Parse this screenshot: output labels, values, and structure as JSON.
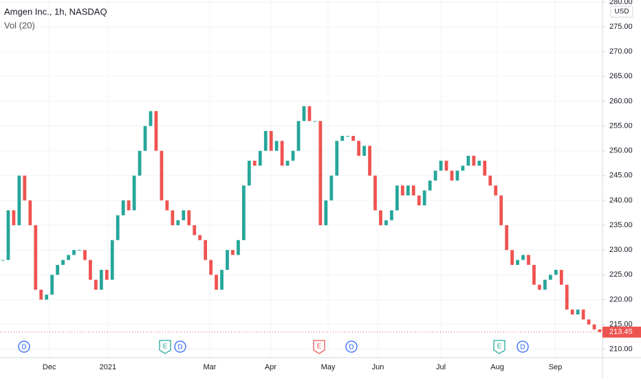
{
  "chart_data": {
    "type": "candlestick",
    "title": "Amgen Inc., 1h, NASDAQ",
    "subtitle": "Vol (20)",
    "currency": "USD",
    "up_color": "#26a69a",
    "down_color": "#ef5350",
    "grid": true,
    "xlim": [
      0,
      110
    ],
    "xticks": [
      {
        "value": 9,
        "label": "Dec"
      },
      {
        "value": 19.7,
        "label": "2021"
      },
      {
        "value": 38.3,
        "label": "Mar"
      },
      {
        "value": 49.4,
        "label": "Apr"
      },
      {
        "value": 59.9,
        "label": "May"
      },
      {
        "value": 69,
        "label": "Jun"
      },
      {
        "value": 80.5,
        "label": "Jul"
      },
      {
        "value": 90.8,
        "label": "Aug"
      },
      {
        "value": 101.4,
        "label": "Sep"
      }
    ],
    "ylim": [
      208.3,
      280.4
    ],
    "yticks": [
      {
        "value": 210,
        "label": "210.00"
      },
      {
        "value": 215,
        "label": "215.00"
      },
      {
        "value": 220,
        "label": "220.00"
      },
      {
        "value": 225,
        "label": "225.00"
      },
      {
        "value": 230,
        "label": "230.00"
      },
      {
        "value": 235,
        "label": "235.00"
      },
      {
        "value": 240,
        "label": "240.00"
      },
      {
        "value": 245,
        "label": "245.00"
      },
      {
        "value": 250,
        "label": "250.00"
      },
      {
        "value": 255,
        "label": "255.00"
      },
      {
        "value": 260,
        "label": "260.00"
      },
      {
        "value": 265,
        "label": "265.00"
      },
      {
        "value": 270,
        "label": "270.00"
      },
      {
        "value": 275,
        "label": "275.00"
      },
      {
        "value": 280,
        "label": "280.00"
      }
    ],
    "values": [
      228,
      238,
      235,
      245,
      240,
      235,
      222,
      220,
      221,
      225,
      227,
      228,
      229,
      230,
      230,
      228,
      224,
      222,
      226,
      224,
      232,
      237,
      240,
      238,
      245,
      250,
      255,
      258,
      250,
      240,
      238,
      235,
      236,
      238,
      235,
      233,
      232,
      228,
      225,
      222,
      226,
      230,
      229,
      232,
      243,
      248,
      247,
      250,
      254,
      250,
      252,
      247,
      248,
      250,
      256,
      259,
      256,
      256,
      235,
      240,
      245,
      252,
      253,
      253,
      252,
      249,
      251,
      245,
      238,
      235,
      236,
      238,
      243,
      241,
      243,
      241,
      239,
      242,
      244,
      246,
      248,
      246,
      244,
      246,
      247,
      249,
      247,
      248,
      245,
      243,
      241,
      235,
      230,
      227,
      228,
      229,
      227,
      223,
      222,
      224,
      225,
      226,
      223,
      218,
      217,
      218,
      216,
      215,
      214,
      213.45
    ],
    "last_price": 213.45,
    "events": [
      "D",
      "E",
      "D",
      "E",
      "D",
      "E",
      "D"
    ]
  }
}
